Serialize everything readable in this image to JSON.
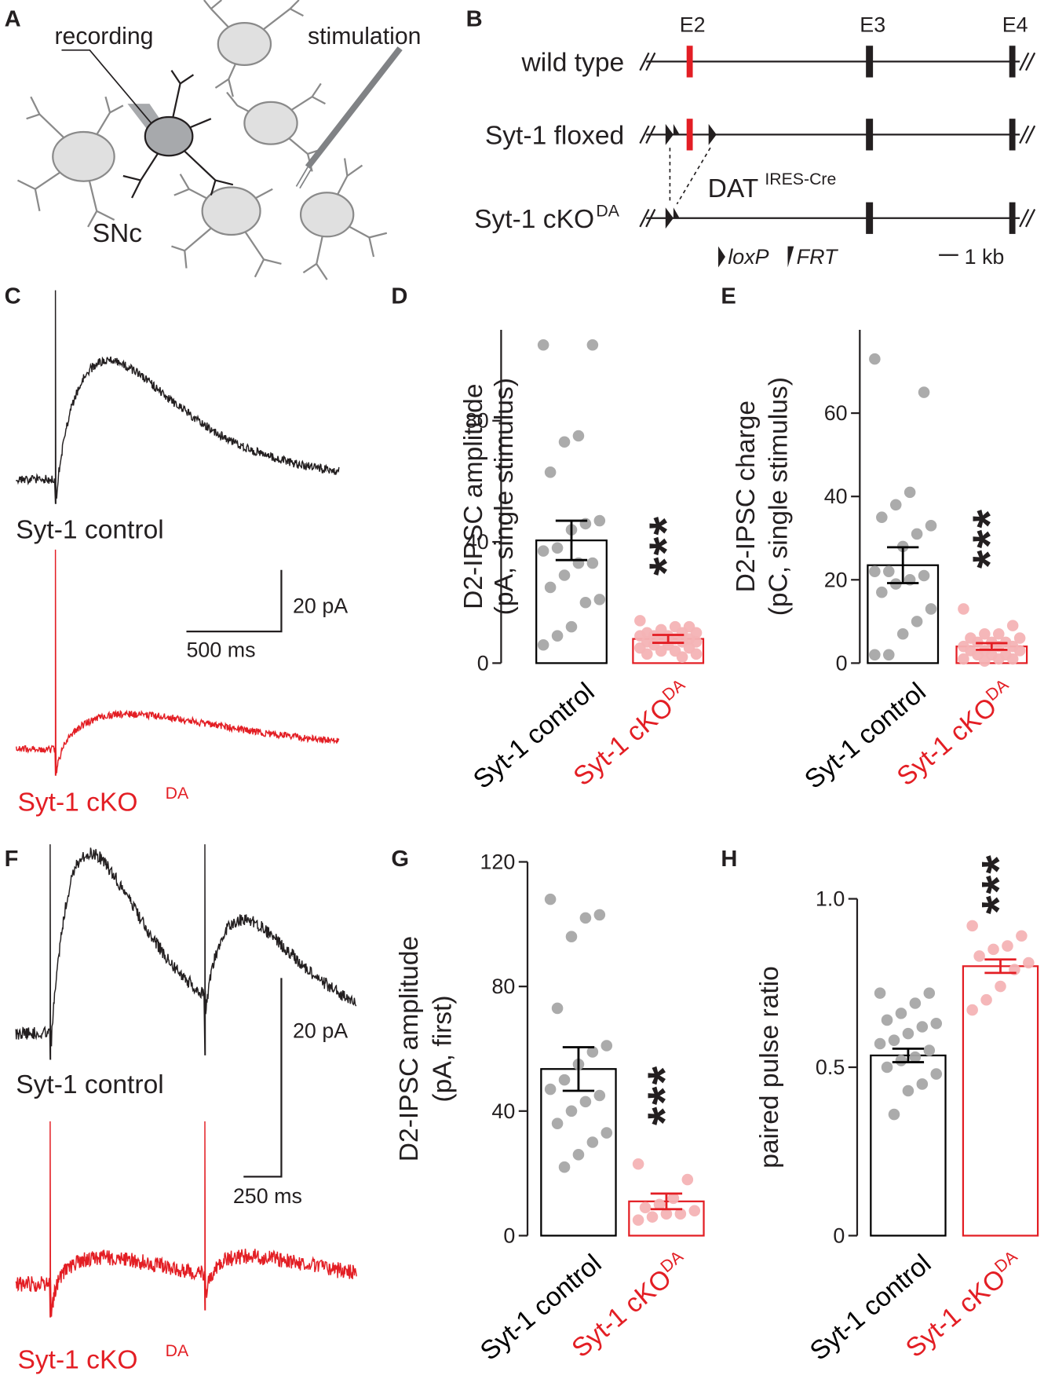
{
  "panels": {
    "labels": [
      "A",
      "B",
      "C",
      "D",
      "E",
      "F",
      "G",
      "H"
    ]
  },
  "schematic": {
    "recording": "recording",
    "stimulation": "stimulation",
    "region": "SNc"
  },
  "gene_map": {
    "exons": [
      "E2",
      "E3",
      "E4"
    ],
    "rows": [
      "wild type",
      "Syt-1 floxed",
      "Syt-1 cKO"
    ],
    "row_superscript": "DA",
    "cre": "DAT",
    "cre_superscript": "IRES-Cre",
    "legend": [
      "loxP",
      "FRT"
    ],
    "scale": "1 kb"
  },
  "traces": [
    {
      "labels": [
        "Syt-1 control",
        "Syt-1 cKO"
      ],
      "superscript": "DA",
      "scale_y": "20 pA",
      "scale_x": "500 ms"
    },
    {
      "labels": [
        "Syt-1 control",
        "Syt-1 cKO"
      ],
      "superscript": "DA",
      "scale_y": "20 pA",
      "scale_x": "250 ms"
    }
  ],
  "chart_data": [
    {
      "type": "bar",
      "ylabel": [
        "D2-IPSC amplitude",
        "(pA, single stimulus)"
      ],
      "categories": [
        "Syt-1 control",
        "Syt-1 cKO"
      ],
      "category_superscript": "DA",
      "colors": [
        "#000000",
        "#e31e24"
      ],
      "point_colors": [
        "#a6a6a6",
        "#f4b3b5"
      ],
      "values": [
        40.5,
        8
      ],
      "errors": [
        6.5,
        1.3
      ],
      "points": [
        [
          105,
          105,
          75,
          73,
          63,
          47,
          46,
          44,
          38,
          37,
          33,
          33,
          29,
          25,
          21,
          20,
          12,
          9,
          6
        ],
        [
          14,
          12,
          12,
          11,
          10,
          10,
          10,
          9,
          9,
          9,
          8,
          8,
          8,
          7,
          7,
          7,
          6,
          6,
          5,
          5,
          4,
          4,
          3,
          3,
          2
        ]
      ],
      "annotation": "***",
      "ylim": [
        0,
        110
      ],
      "yticks": [
        0,
        40,
        80
      ]
    },
    {
      "type": "bar",
      "ylabel": [
        "D2-IPSC charge",
        "(pC, single stimulus)"
      ],
      "categories": [
        "Syt-1 control",
        "Syt-1 cKO"
      ],
      "category_superscript": "DA",
      "colors": [
        "#000000",
        "#e31e24"
      ],
      "point_colors": [
        "#a6a6a6",
        "#f4b3b5"
      ],
      "values": [
        23.5,
        4
      ],
      "errors": [
        4.3,
        0.8
      ],
      "points": [
        [
          73,
          65,
          41,
          38,
          35,
          33,
          31,
          28,
          22,
          22,
          21,
          20,
          19,
          17,
          13,
          10,
          7,
          2,
          2
        ],
        [
          13,
          9,
          7,
          7,
          6,
          6,
          5,
          5,
          5,
          4,
          4,
          4,
          3,
          3,
          3,
          2,
          2,
          2,
          1,
          1,
          1,
          0.5
        ]
      ],
      "annotation": "***",
      "ylim": [
        0,
        80
      ],
      "yticks": [
        0,
        20,
        40,
        60
      ]
    },
    {
      "type": "bar",
      "ylabel": [
        "D2-IPSC amplitude",
        "(pA, first)"
      ],
      "categories": [
        "Syt-1 control",
        "Syt-1 cKO"
      ],
      "category_superscript": "DA",
      "colors": [
        "#000000",
        "#e31e24"
      ],
      "point_colors": [
        "#a6a6a6",
        "#f4b3b5"
      ],
      "values": [
        53.5,
        11
      ],
      "errors": [
        7,
        2.5
      ],
      "points": [
        [
          108,
          103,
          102,
          96,
          73,
          61,
          59,
          55,
          50,
          47,
          45,
          43,
          40,
          36,
          33,
          30,
          26,
          22
        ],
        [
          23,
          18,
          12,
          10,
          9,
          8,
          7,
          7,
          6,
          5
        ]
      ],
      "annotation": "***",
      "ylim": [
        0,
        120
      ],
      "yticks": [
        0,
        40,
        80,
        120
      ]
    },
    {
      "type": "bar",
      "ylabel": [
        "paired pulse ratio"
      ],
      "categories": [
        "Syt-1 control",
        "Syt-1 cKO"
      ],
      "category_superscript": "DA",
      "colors": [
        "#000000",
        "#e31e24"
      ],
      "point_colors": [
        "#a6a6a6",
        "#f4b3b5"
      ],
      "values": [
        0.535,
        0.8
      ],
      "errors": [
        0.02,
        0.02
      ],
      "points": [
        [
          0.72,
          0.72,
          0.69,
          0.66,
          0.64,
          0.63,
          0.62,
          0.6,
          0.58,
          0.57,
          0.55,
          0.53,
          0.52,
          0.5,
          0.48,
          0.45,
          0.43,
          0.36
        ],
        [
          0.92,
          0.89,
          0.86,
          0.85,
          0.83,
          0.81,
          0.79,
          0.74,
          0.7,
          0.67
        ]
      ],
      "annotation": "***",
      "ylim": [
        0,
        1
      ],
      "yticks": [
        0,
        0.5,
        {
          "value": 1,
          "label": "1.0"
        }
      ]
    }
  ]
}
